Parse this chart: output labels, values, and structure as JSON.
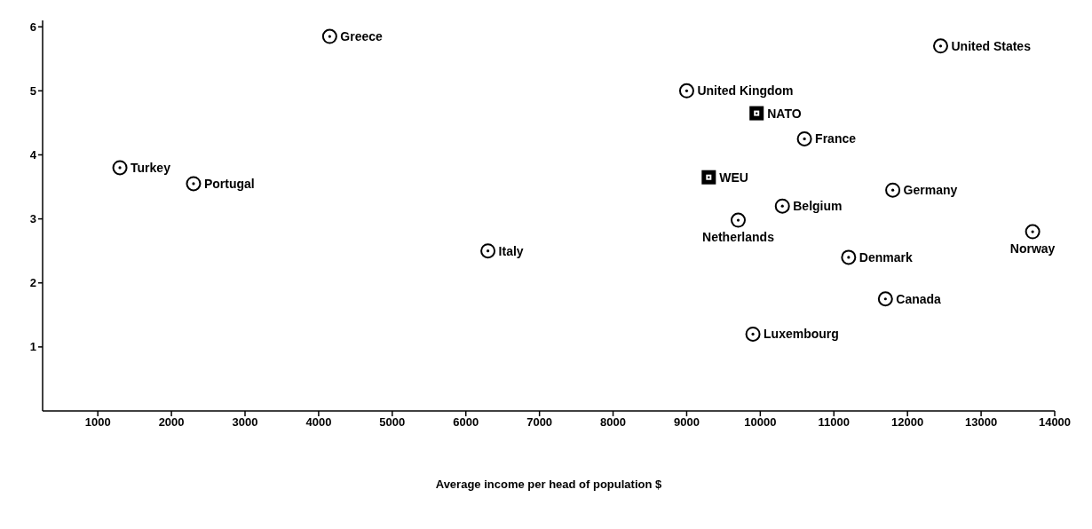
{
  "chart_data": {
    "type": "scatter",
    "xlabel": "Average income per head of  population $",
    "xlim": [
      250,
      14000
    ],
    "xticks": [
      1000,
      2000,
      3000,
      4000,
      5000,
      6000,
      7000,
      8000,
      9000,
      10000,
      11000,
      12000,
      13000,
      14000
    ],
    "ylim": [
      0,
      6.1
    ],
    "yticks": [
      1,
      2,
      3,
      4,
      5,
      6
    ],
    "grid": false,
    "series": [
      {
        "marker": "circle",
        "color": "#000000",
        "x": [
          4150,
          12450,
          9000,
          10600,
          1300,
          2300,
          11800,
          10300,
          9700,
          13700,
          6300,
          11200,
          11700,
          9900
        ],
        "values": [
          5.85,
          5.7,
          5.0,
          4.25,
          3.8,
          3.55,
          3.45,
          3.2,
          2.98,
          2.8,
          2.5,
          2.4,
          1.75,
          1.2
        ]
      },
      {
        "marker": "square",
        "color": "#000000",
        "x": [
          9950,
          9300
        ],
        "values": [
          4.65,
          3.65
        ]
      }
    ],
    "annotations": [
      {
        "text": "Greece",
        "x": 4150,
        "y": 5.85
      },
      {
        "text": "United States",
        "x": 12450,
        "y": 5.7
      },
      {
        "text": "United Kingdom",
        "x": 9000,
        "y": 5.0
      },
      {
        "text": "NATO",
        "x": 9950,
        "y": 4.65
      },
      {
        "text": "France",
        "x": 10600,
        "y": 4.25
      },
      {
        "text": "Turkey",
        "x": 1300,
        "y": 3.8
      },
      {
        "text": "Portugal",
        "x": 2300,
        "y": 3.55
      },
      {
        "text": "WEU",
        "x": 9300,
        "y": 3.65
      },
      {
        "text": "Germany",
        "x": 11800,
        "y": 3.45
      },
      {
        "text": "Belgium",
        "x": 10300,
        "y": 3.2
      },
      {
        "text": "Netherlands",
        "x": 9700,
        "y": 2.98
      },
      {
        "text": "Norway",
        "x": 13700,
        "y": 2.8
      },
      {
        "text": "Italy",
        "x": 6300,
        "y": 2.5
      },
      {
        "text": "Denmark",
        "x": 11200,
        "y": 2.4
      },
      {
        "text": "Canada",
        "x": 11700,
        "y": 1.75
      },
      {
        "text": "Luxembourg",
        "x": 9900,
        "y": 1.2
      }
    ]
  }
}
